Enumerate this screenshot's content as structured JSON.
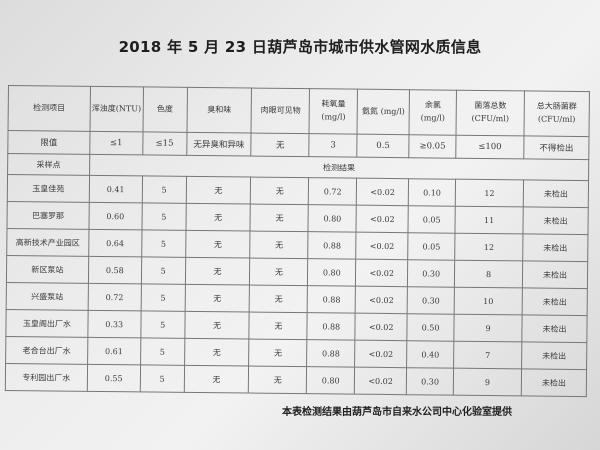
{
  "title": "2018 年 5 月 23 日葫芦岛市城市供水管网水质信息",
  "headers": [
    "检测项目",
    "浑浊度(NTU)",
    "色度",
    "臭和味",
    "肉眼可见物",
    "耗氧量\n(mg/l)",
    "氨氮 (mg/l)",
    "余氯\n(mg/l)",
    "菌落总数\n(CFU/ml)",
    "总大肠菌群\n(CFU/ml)"
  ],
  "limits": [
    "限值",
    "≤1",
    "≤15",
    "无异臭和异味",
    "无",
    "3",
    "0.5",
    "≥0.05",
    "≤100",
    "不得检出"
  ],
  "sampling_label": "采样点",
  "results_label": "检测结果",
  "rows": [
    [
      "玉皇佳苑",
      "0.41",
      "5",
      "无",
      "无",
      "0.72",
      "<0.02",
      "0.10",
      "12",
      "未检出"
    ],
    [
      "巴塞罗那",
      "0.60",
      "5",
      "无",
      "无",
      "0.80",
      "<0.02",
      "0.05",
      "11",
      "未检出"
    ],
    [
      "高新技术产业园区",
      "0.64",
      "5",
      "无",
      "无",
      "0.88",
      "<0.02",
      "0.05",
      "12",
      "未检出"
    ],
    [
      "新区泵站",
      "0.58",
      "5",
      "无",
      "无",
      "0.80",
      "<0.02",
      "0.30",
      "8",
      "未检出"
    ],
    [
      "兴盛泵站",
      "0.72",
      "5",
      "无",
      "无",
      "0.88",
      "<0.02",
      "0.30",
      "10",
      "未检出"
    ],
    [
      "玉皇阁出厂水",
      "0.33",
      "5",
      "无",
      "无",
      "0.88",
      "<0.02",
      "0.50",
      "9",
      "未检出"
    ],
    [
      "老合台出厂水",
      "0.61",
      "5",
      "无",
      "无",
      "0.88",
      "<0.02",
      "0.40",
      "7",
      "未检出"
    ],
    [
      "专利园出厂水",
      "0.55",
      "5",
      "无",
      "无",
      "0.80",
      "<0.02",
      "0.30",
      "9",
      "未检出"
    ]
  ],
  "footer": "本表检测结果由葫芦岛市自来水公司中心化验室提供"
}
